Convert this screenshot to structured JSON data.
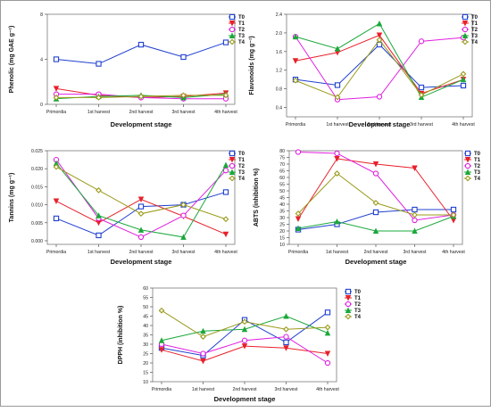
{
  "figure": {
    "categories": [
      "Primordia",
      "1st harvest",
      "2nd harvest",
      "3rd harvest",
      "4th harvest"
    ],
    "series_styles": [
      {
        "name": "T0",
        "color": "#1f3fd0",
        "marker": "square"
      },
      {
        "name": "T1",
        "color": "#e8202a",
        "marker": "triangle-down"
      },
      {
        "name": "T2",
        "color": "#e020e0",
        "marker": "circle"
      },
      {
        "name": "T3",
        "color": "#1aa83a",
        "marker": "triangle-up"
      },
      {
        "name": "T4",
        "color": "#9a9a1a",
        "marker": "diamond"
      }
    ]
  },
  "chart_data": [
    {
      "type": "line",
      "ylabel": "Phenolic (mg GAE g⁻¹)",
      "xlabel": "Development stage",
      "ylim": [
        0,
        8
      ],
      "yticks": [
        0,
        4,
        8
      ],
      "ytick_labels": [
        "0",
        "4",
        "8"
      ],
      "categories": [
        "Primordia",
        "1st harvest",
        "2nd harvest",
        "3rd harvest",
        "4th harvest"
      ],
      "series": [
        {
          "name": "T0",
          "values": [
            4.0,
            3.6,
            5.3,
            4.2,
            5.5
          ]
        },
        {
          "name": "T1",
          "values": [
            1.4,
            0.8,
            0.6,
            0.7,
            1.0
          ]
        },
        {
          "name": "T2",
          "values": [
            0.9,
            0.9,
            0.6,
            0.5,
            0.5
          ]
        },
        {
          "name": "T3",
          "values": [
            0.5,
            0.7,
            0.8,
            0.6,
            0.9
          ]
        },
        {
          "name": "T4",
          "values": [
            0.6,
            0.6,
            0.7,
            0.8,
            0.8
          ]
        }
      ]
    },
    {
      "type": "line",
      "ylabel": "Flavonoids (mg g⁻¹)",
      "xlabel": "Development stage",
      "ylim": [
        0.2,
        2.4
      ],
      "yticks": [
        0.4,
        0.8,
        1.2,
        1.6,
        2.0,
        2.4
      ],
      "ytick_labels": [
        "0.4",
        "0.8",
        "1.2",
        "1.6",
        "2.0",
        "2.4"
      ],
      "categories": [
        "Primordia",
        "1st harvest",
        "2nd harvest",
        "3rd harvest",
        "4th harvest"
      ],
      "series": [
        {
          "name": "T0",
          "values": [
            1.0,
            0.88,
            1.75,
            0.83,
            0.87
          ]
        },
        {
          "name": "T1",
          "values": [
            1.4,
            1.58,
            1.95,
            0.7,
            1.0
          ]
        },
        {
          "name": "T2",
          "values": [
            1.92,
            0.57,
            0.63,
            1.82,
            1.9
          ]
        },
        {
          "name": "T3",
          "values": [
            1.92,
            1.66,
            2.2,
            0.62,
            1.0
          ]
        },
        {
          "name": "T4",
          "values": [
            0.98,
            0.62,
            1.85,
            0.67,
            1.12
          ]
        }
      ]
    },
    {
      "type": "line",
      "ylabel": "Tannins (mg g⁻¹)",
      "xlabel": "Development stage",
      "ylim": [
        -0.001,
        0.025
      ],
      "yticks": [
        0.0,
        0.005,
        0.01,
        0.015,
        0.02,
        0.025
      ],
      "ytick_labels": [
        "0.000",
        "0.005",
        "0.010",
        "0.015",
        "0.020",
        "0.025"
      ],
      "categories": [
        "Primordia",
        "1st harvest",
        "2nd harvest",
        "3rd harvest",
        "4th harvest"
      ],
      "series": [
        {
          "name": "T0",
          "values": [
            0.0062,
            0.0015,
            0.0095,
            0.01,
            0.0135
          ]
        },
        {
          "name": "T1",
          "values": [
            0.011,
            0.005,
            0.0115,
            0.0068,
            0.0018
          ]
        },
        {
          "name": "T2",
          "values": [
            0.0225,
            0.0062,
            0.001,
            0.007,
            0.0195
          ]
        },
        {
          "name": "T3",
          "values": [
            0.0215,
            0.007,
            0.003,
            0.001,
            0.021
          ]
        },
        {
          "name": "T4",
          "values": [
            0.0205,
            0.014,
            0.0075,
            0.01,
            0.006
          ]
        }
      ]
    },
    {
      "type": "line",
      "ylabel": "ABTS (inhibition %)",
      "xlabel": "Development stage",
      "ylim": [
        10,
        80
      ],
      "yticks": [
        10,
        15,
        20,
        25,
        30,
        35,
        40,
        45,
        50,
        55,
        60,
        65,
        70,
        75,
        80
      ],
      "ytick_labels": [
        "10",
        "15",
        "20",
        "25",
        "30",
        "35",
        "40",
        "45",
        "50",
        "55",
        "60",
        "65",
        "70",
        "75",
        "80"
      ],
      "categories": [
        "Primordia",
        "1st harvest",
        "2nd harvest",
        "3rd harvest",
        "4th harvest"
      ],
      "series": [
        {
          "name": "T0",
          "values": [
            21,
            25,
            34,
            36,
            36
          ]
        },
        {
          "name": "T1",
          "values": [
            29,
            74,
            70,
            67,
            28
          ]
        },
        {
          "name": "T2",
          "values": [
            79,
            78,
            63,
            28,
            32
          ]
        },
        {
          "name": "T3",
          "values": [
            22,
            27,
            20,
            20,
            31
          ]
        },
        {
          "name": "T4",
          "values": [
            33,
            63,
            41,
            32,
            32
          ]
        }
      ]
    },
    {
      "type": "line",
      "ylabel": "DPPH (inhibition %)",
      "xlabel": "Development stage",
      "ylim": [
        10,
        60
      ],
      "yticks": [
        10,
        15,
        20,
        25,
        30,
        35,
        40,
        45,
        50,
        55,
        60
      ],
      "ytick_labels": [
        "10",
        "15",
        "20",
        "25",
        "30",
        "35",
        "40",
        "45",
        "50",
        "55",
        "60"
      ],
      "categories": [
        "Primordia",
        "1st harvest",
        "2nd harvest",
        "3rd harvest",
        "4th harvest"
      ],
      "series": [
        {
          "name": "T0",
          "values": [
            28,
            24,
            43,
            31,
            47
          ]
        },
        {
          "name": "T1",
          "values": [
            27,
            21,
            29,
            28,
            25
          ]
        },
        {
          "name": "T2",
          "values": [
            30,
            25,
            32,
            34,
            20
          ]
        },
        {
          "name": "T3",
          "values": [
            32,
            37,
            38,
            45,
            36
          ]
        },
        {
          "name": "T4",
          "values": [
            48,
            34,
            42,
            38,
            39
          ]
        }
      ]
    }
  ]
}
